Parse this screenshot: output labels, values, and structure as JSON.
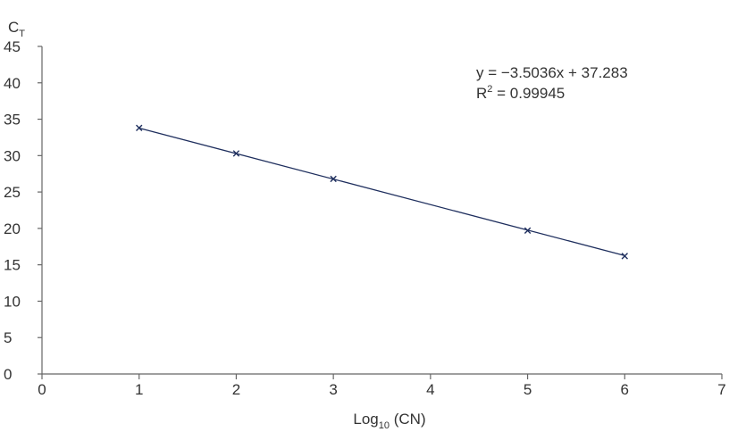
{
  "chart_data": {
    "type": "scatter",
    "title": "",
    "xlabel": "Log",
    "xlabel_subscript": "10",
    "xlabel_suffix": " (CN)",
    "ylabel": "C",
    "ylabel_subscript": "T",
    "xlim": [
      0,
      7
    ],
    "ylim": [
      0,
      45
    ],
    "xticks": [
      "0",
      "1",
      "2",
      "3",
      "4",
      "5",
      "6",
      "7"
    ],
    "yticks": [
      "0",
      "5",
      "10",
      "15",
      "20",
      "25",
      "30",
      "35",
      "40",
      "45"
    ],
    "grid": false,
    "series": [
      {
        "x": [
          1,
          2,
          3,
          5,
          6
        ],
        "y": [
          33.8,
          30.3,
          26.8,
          19.7,
          16.2
        ],
        "marker": "x",
        "color": "#1f2f5e"
      }
    ],
    "trendline": {
      "type": "linear",
      "slope": -3.5036,
      "intercept": 37.283,
      "x_range": [
        1,
        6
      ],
      "color": "#1f2f5e"
    },
    "annotations": {
      "equation": "y = −3.5036x + 37.283",
      "r2_label": "R",
      "r2_sup": "2",
      "r2_value": " = 0.99945"
    }
  }
}
